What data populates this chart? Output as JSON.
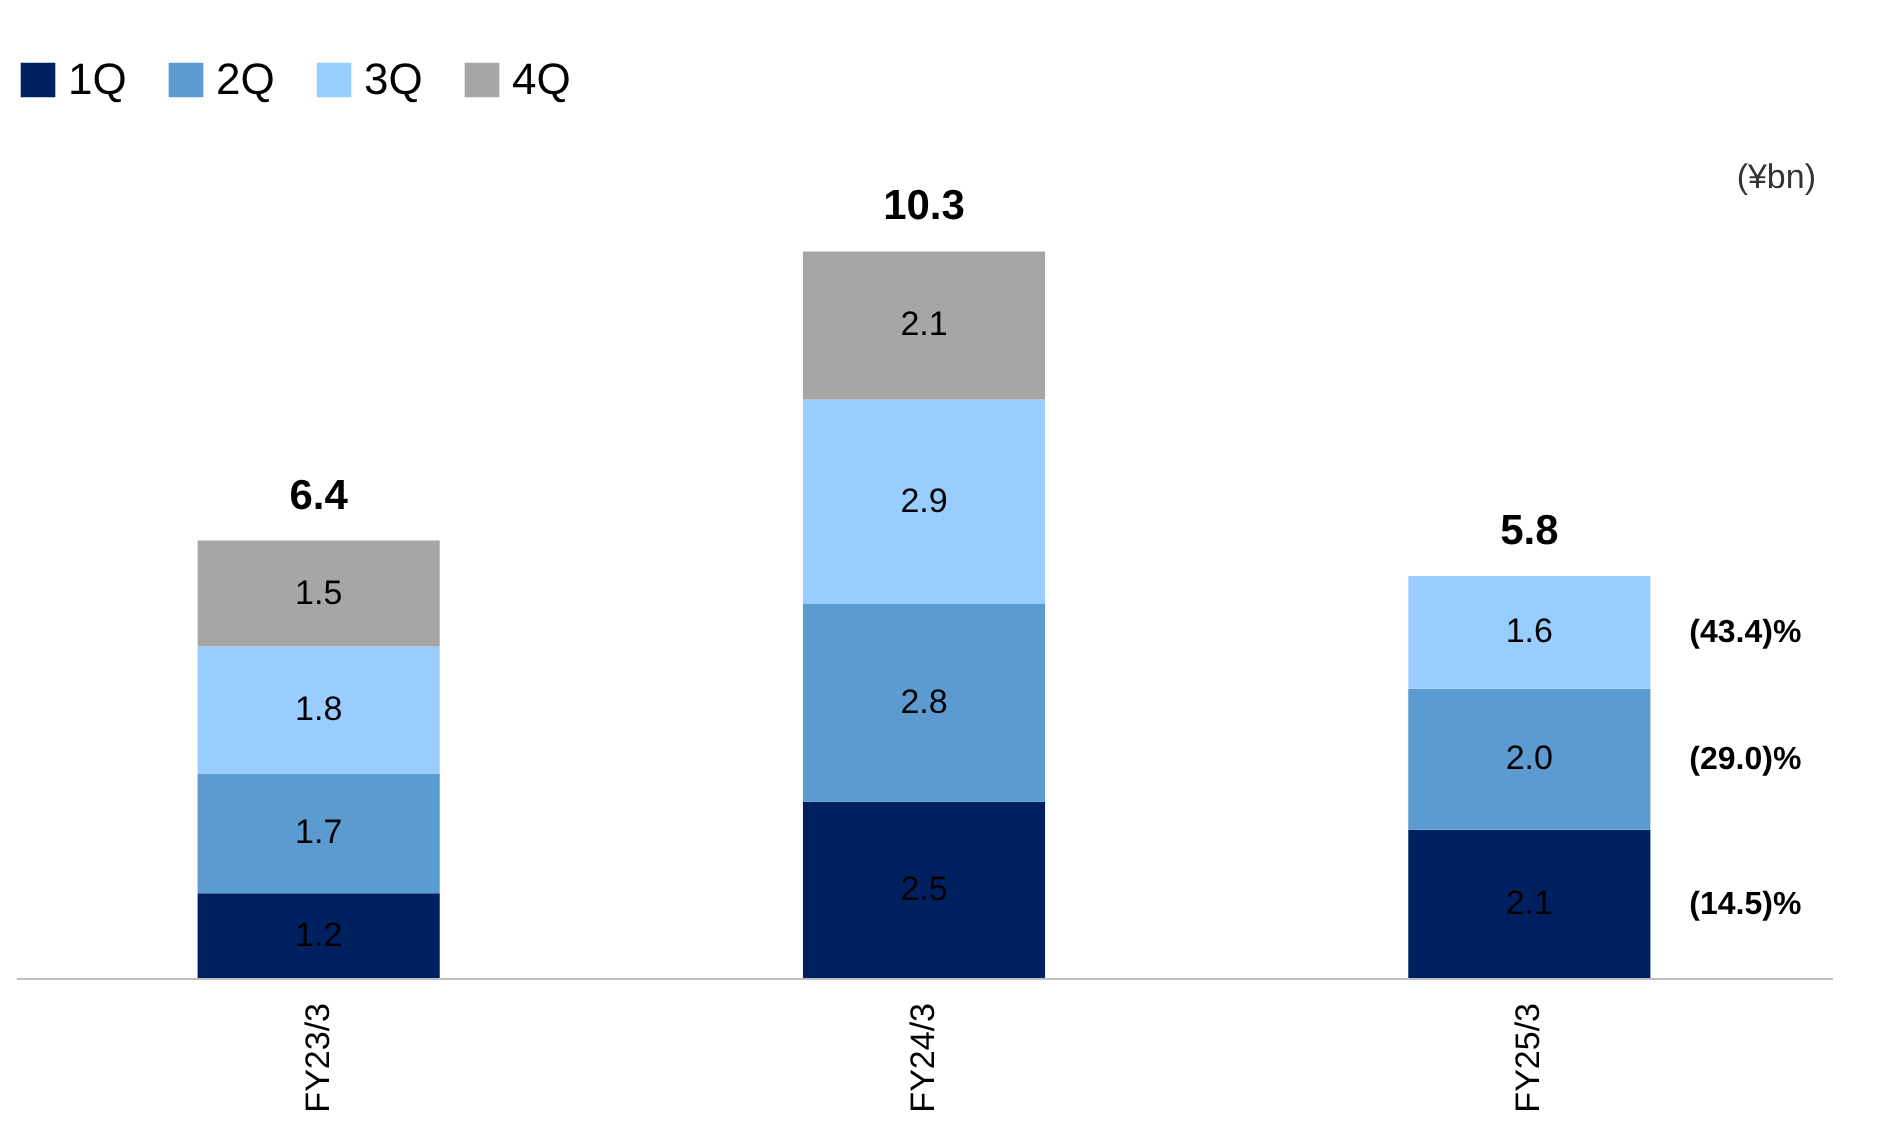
{
  "chart_data": {
    "type": "bar",
    "stacked": true,
    "legend": "top left",
    "categories": [
      "FY23/3",
      "FY24/3",
      "FY25/3"
    ],
    "series": [
      {
        "name": "1Q",
        "color": "#002060",
        "values": [
          1.2,
          2.5,
          2.1
        ],
        "value_labels": [
          "1.2",
          "2.5",
          "2.1"
        ]
      },
      {
        "name": "2Q",
        "color": "#5b9bd0",
        "values": [
          1.7,
          2.8,
          2.0
        ],
        "value_labels": [
          "1.7",
          "2.8",
          "2.0"
        ]
      },
      {
        "name": "3Q",
        "color": "#99ccff",
        "values": [
          1.8,
          2.9,
          1.6
        ],
        "value_labels": [
          "1.8",
          "2.9",
          "1.6"
        ]
      },
      {
        "name": "4Q",
        "color": "#a6a6a6",
        "values": [
          1.5,
          2.1,
          null
        ],
        "value_labels": [
          "1.5",
          "2.1",
          null
        ]
      }
    ],
    "totals": [
      "6.4",
      "10.3",
      "5.8"
    ],
    "annotations": [
      "(¥bn)",
      "(43.4)%",
      "(29.0)%",
      "(14.5)%"
    ]
  }
}
